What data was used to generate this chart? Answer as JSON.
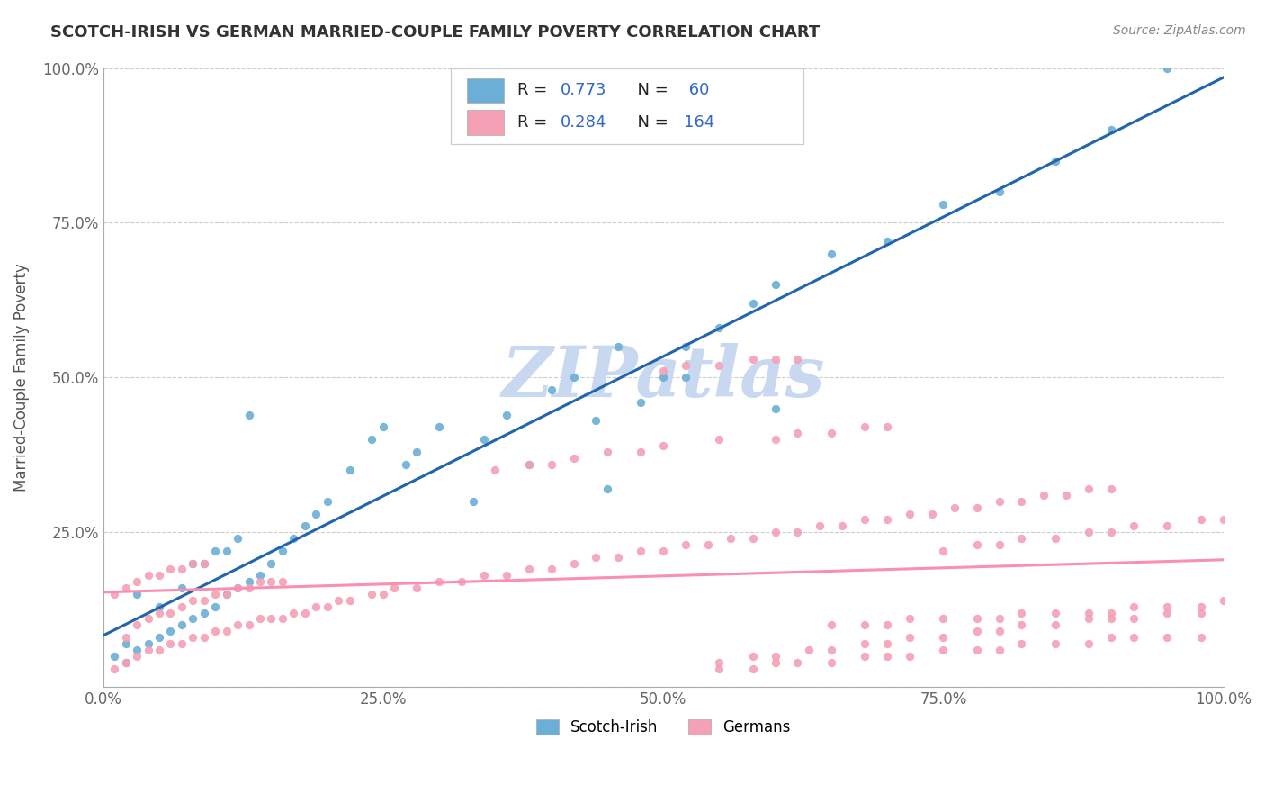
{
  "title": "SCOTCH-IRISH VS GERMAN MARRIED-COUPLE FAMILY POVERTY CORRELATION CHART",
  "source": "Source: ZipAtlas.com",
  "ylabel": "Married-Couple Family Poverty",
  "xlim": [
    0,
    1.0
  ],
  "ylim": [
    0,
    1.0
  ],
  "xtick_labels": [
    "0.0%",
    "25.0%",
    "50.0%",
    "75.0%",
    "100.0%"
  ],
  "xtick_vals": [
    0.0,
    0.25,
    0.5,
    0.75,
    1.0
  ],
  "ytick_labels": [
    "",
    "25.0%",
    "50.0%",
    "75.0%",
    "100.0%"
  ],
  "ytick_vals": [
    0.0,
    0.25,
    0.5,
    0.75,
    1.0
  ],
  "scotch_irish_color": "#6baed6",
  "german_color": "#f4a0b5",
  "scotch_irish_line_color": "#2166ac",
  "german_line_color": "#fa8fb1",
  "legend_R_color": "#3366cc",
  "R_scotch": 0.773,
  "N_scotch": 60,
  "R_german": 0.284,
  "N_german": 164,
  "watermark": "ZIPatlas",
  "watermark_color": "#c8d8f0",
  "scotch_irish_x": [
    0.01,
    0.02,
    0.02,
    0.03,
    0.03,
    0.04,
    0.05,
    0.05,
    0.06,
    0.07,
    0.07,
    0.08,
    0.08,
    0.09,
    0.09,
    0.1,
    0.1,
    0.11,
    0.11,
    0.12,
    0.12,
    0.13,
    0.13,
    0.14,
    0.15,
    0.16,
    0.17,
    0.18,
    0.19,
    0.2,
    0.22,
    0.24,
    0.25,
    0.27,
    0.28,
    0.3,
    0.33,
    0.34,
    0.36,
    0.38,
    0.4,
    0.42,
    0.44,
    0.45,
    0.46,
    0.48,
    0.5,
    0.52,
    0.55,
    0.58,
    0.6,
    0.65,
    0.7,
    0.75,
    0.8,
    0.85,
    0.9,
    0.52,
    0.6,
    0.95
  ],
  "scotch_irish_y": [
    0.05,
    0.04,
    0.07,
    0.06,
    0.15,
    0.07,
    0.08,
    0.13,
    0.09,
    0.1,
    0.16,
    0.11,
    0.2,
    0.12,
    0.2,
    0.13,
    0.22,
    0.15,
    0.22,
    0.16,
    0.24,
    0.17,
    0.44,
    0.18,
    0.2,
    0.22,
    0.24,
    0.26,
    0.28,
    0.3,
    0.35,
    0.4,
    0.42,
    0.36,
    0.38,
    0.42,
    0.3,
    0.4,
    0.44,
    0.36,
    0.48,
    0.5,
    0.43,
    0.32,
    0.55,
    0.46,
    0.5,
    0.55,
    0.58,
    0.62,
    0.65,
    0.7,
    0.72,
    0.78,
    0.8,
    0.85,
    0.9,
    0.5,
    0.45,
    1.0
  ],
  "german_x": [
    0.01,
    0.01,
    0.02,
    0.02,
    0.02,
    0.03,
    0.03,
    0.03,
    0.04,
    0.04,
    0.04,
    0.05,
    0.05,
    0.05,
    0.06,
    0.06,
    0.06,
    0.07,
    0.07,
    0.07,
    0.08,
    0.08,
    0.08,
    0.09,
    0.09,
    0.09,
    0.1,
    0.1,
    0.11,
    0.11,
    0.12,
    0.12,
    0.13,
    0.13,
    0.14,
    0.14,
    0.15,
    0.15,
    0.16,
    0.16,
    0.17,
    0.18,
    0.19,
    0.2,
    0.21,
    0.22,
    0.24,
    0.25,
    0.26,
    0.28,
    0.3,
    0.32,
    0.34,
    0.36,
    0.38,
    0.4,
    0.42,
    0.44,
    0.46,
    0.48,
    0.5,
    0.52,
    0.54,
    0.56,
    0.58,
    0.6,
    0.62,
    0.64,
    0.66,
    0.68,
    0.7,
    0.72,
    0.74,
    0.76,
    0.78,
    0.8,
    0.82,
    0.84,
    0.86,
    0.88,
    0.9,
    0.35,
    0.38,
    0.4,
    0.42,
    0.45,
    0.48,
    0.5,
    0.55,
    0.6,
    0.62,
    0.65,
    0.68,
    0.7,
    0.5,
    0.52,
    0.55,
    0.58,
    0.6,
    0.62,
    0.55,
    0.58,
    0.6,
    0.63,
    0.65,
    0.68,
    0.7,
    0.72,
    0.75,
    0.78,
    0.8,
    0.82,
    0.85,
    0.88,
    0.9,
    0.92,
    0.95,
    0.98,
    0.65,
    0.68,
    0.7,
    0.72,
    0.75,
    0.78,
    0.8,
    0.82,
    0.85,
    0.88,
    0.9,
    0.92,
    0.95,
    0.98,
    1.0,
    0.55,
    0.58,
    0.6,
    0.62,
    0.65,
    0.68,
    0.7,
    0.72,
    0.75,
    0.78,
    0.8,
    0.82,
    0.85,
    0.88,
    0.9,
    0.92,
    0.95,
    0.98,
    0.75,
    0.78,
    0.8,
    0.82,
    0.85,
    0.88,
    0.9,
    0.92,
    0.95,
    0.98,
    1.0
  ],
  "german_y": [
    0.03,
    0.15,
    0.04,
    0.08,
    0.16,
    0.05,
    0.1,
    0.17,
    0.06,
    0.11,
    0.18,
    0.06,
    0.12,
    0.18,
    0.07,
    0.12,
    0.19,
    0.07,
    0.13,
    0.19,
    0.08,
    0.14,
    0.2,
    0.08,
    0.14,
    0.2,
    0.09,
    0.15,
    0.09,
    0.15,
    0.1,
    0.16,
    0.1,
    0.16,
    0.11,
    0.17,
    0.11,
    0.17,
    0.11,
    0.17,
    0.12,
    0.12,
    0.13,
    0.13,
    0.14,
    0.14,
    0.15,
    0.15,
    0.16,
    0.16,
    0.17,
    0.17,
    0.18,
    0.18,
    0.19,
    0.19,
    0.2,
    0.21,
    0.21,
    0.22,
    0.22,
    0.23,
    0.23,
    0.24,
    0.24,
    0.25,
    0.25,
    0.26,
    0.26,
    0.27,
    0.27,
    0.28,
    0.28,
    0.29,
    0.29,
    0.3,
    0.3,
    0.31,
    0.31,
    0.32,
    0.32,
    0.35,
    0.36,
    0.36,
    0.37,
    0.38,
    0.38,
    0.39,
    0.4,
    0.4,
    0.41,
    0.41,
    0.42,
    0.42,
    0.51,
    0.52,
    0.52,
    0.53,
    0.53,
    0.53,
    0.04,
    0.05,
    0.05,
    0.06,
    0.06,
    0.07,
    0.07,
    0.08,
    0.08,
    0.09,
    0.09,
    0.1,
    0.1,
    0.11,
    0.11,
    0.11,
    0.12,
    0.12,
    0.1,
    0.1,
    0.1,
    0.11,
    0.11,
    0.11,
    0.11,
    0.12,
    0.12,
    0.12,
    0.12,
    0.13,
    0.13,
    0.13,
    0.14,
    0.03,
    0.03,
    0.04,
    0.04,
    0.04,
    0.05,
    0.05,
    0.05,
    0.06,
    0.06,
    0.06,
    0.07,
    0.07,
    0.07,
    0.08,
    0.08,
    0.08,
    0.08,
    0.22,
    0.23,
    0.23,
    0.24,
    0.24,
    0.25,
    0.25,
    0.26,
    0.26,
    0.27,
    0.27
  ]
}
